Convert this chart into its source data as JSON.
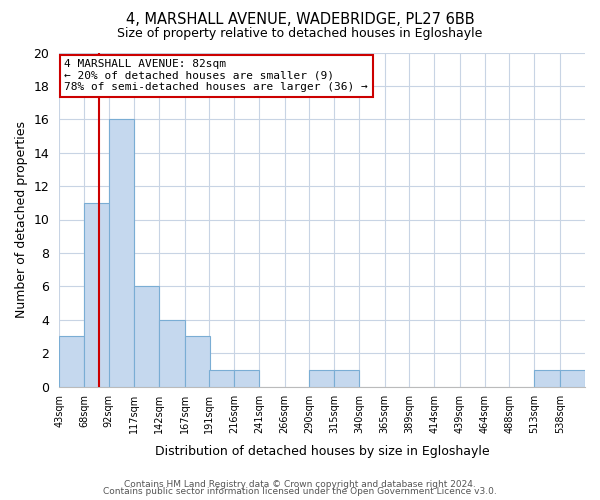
{
  "title": "4, MARSHALL AVENUE, WADEBRIDGE, PL27 6BB",
  "subtitle": "Size of property relative to detached houses in Egloshayle",
  "xlabel": "Distribution of detached houses by size in Egloshayle",
  "ylabel": "Number of detached properties",
  "footer1": "Contains HM Land Registry data © Crown copyright and database right 2024.",
  "footer2": "Contains public sector information licensed under the Open Government Licence v3.0.",
  "bins": [
    43,
    68,
    92,
    117,
    142,
    167,
    191,
    216,
    241,
    266,
    290,
    315,
    340,
    365,
    389,
    414,
    439,
    464,
    488,
    513,
    538
  ],
  "bin_width": 25,
  "counts": [
    3,
    11,
    16,
    6,
    4,
    3,
    1,
    1,
    0,
    0,
    1,
    1,
    0,
    0,
    0,
    0,
    0,
    0,
    0,
    1,
    1
  ],
  "bar_color": "#c5d8ee",
  "bar_edge_color": "#7aadd4",
  "ref_line_x": 82,
  "ref_line_color": "#cc0000",
  "annotation_title": "4 MARSHALL AVENUE: 82sqm",
  "annotation_line1": "← 20% of detached houses are smaller (9)",
  "annotation_line2": "78% of semi-detached houses are larger (36) →",
  "annotation_box_edge": "#cc0000",
  "ylim": [
    0,
    20
  ],
  "yticks": [
    0,
    2,
    4,
    6,
    8,
    10,
    12,
    14,
    16,
    18,
    20
  ],
  "background_color": "#ffffff",
  "grid_color": "#c8d4e4"
}
